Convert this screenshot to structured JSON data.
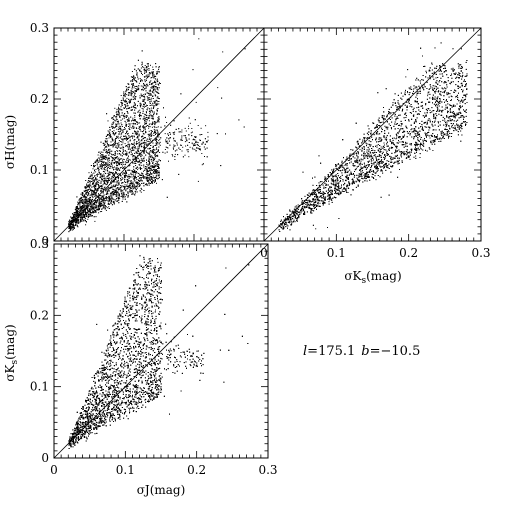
{
  "chart_data": [
    {
      "type": "scatter",
      "panel": "top-left",
      "xlabel": "",
      "ylabel": "σH(mag)",
      "xlim": [
        0,
        0.3
      ],
      "ylim": [
        0,
        0.3
      ],
      "x_ticklabels": [],
      "y_ticklabels": [
        "0",
        "0.1",
        "0.2",
        "0.3"
      ],
      "reference_line": "y = x",
      "density_shape": {
        "core_start": [
          0.02,
          0.02
        ],
        "upper_slope": 2.4,
        "lower_slope": 0.55,
        "x_cutoff": 0.15,
        "y_max": 0.25,
        "secondary_plume": {
          "x_range": [
            0.15,
            0.22
          ],
          "y_center": 0.14
        }
      }
    },
    {
      "type": "scatter",
      "panel": "top-right",
      "xlabel": "σKs(mag)",
      "ylabel": "",
      "xlim": [
        0,
        0.3
      ],
      "ylim": [
        0,
        0.3
      ],
      "x_ticklabels": [
        "0",
        "0.1",
        "0.2",
        "0.3"
      ],
      "y_ticklabels": [],
      "reference_line": "y = x",
      "density_shape": {
        "core_start": [
          0.02,
          0.02
        ],
        "upper_slope": 1.1,
        "lower_slope": 0.55,
        "x_cutoff": 0.28,
        "y_max": 0.25
      }
    },
    {
      "type": "scatter",
      "panel": "bottom-left",
      "xlabel": "σJ(mag)",
      "ylabel": "σKs(mag)",
      "xlim": [
        0,
        0.3
      ],
      "ylim": [
        0,
        0.3
      ],
      "x_ticklabels": [
        "0",
        "0.1",
        "0.2",
        "0.3"
      ],
      "y_ticklabels": [
        "0",
        "0.1",
        "0.2",
        "0.3"
      ],
      "reference_line": "y = x",
      "density_shape": {
        "core_start": [
          0.02,
          0.02
        ],
        "upper_slope": 2.6,
        "lower_slope": 0.55,
        "x_cutoff": 0.15,
        "y_max": 0.28,
        "secondary_plume": {
          "x_range": [
            0.15,
            0.21
          ],
          "y_center": 0.14
        }
      }
    }
  ],
  "annotation": {
    "l_label": "l",
    "l_value": "=175.1",
    "b_label": "b",
    "b_value": "=−10.5"
  }
}
